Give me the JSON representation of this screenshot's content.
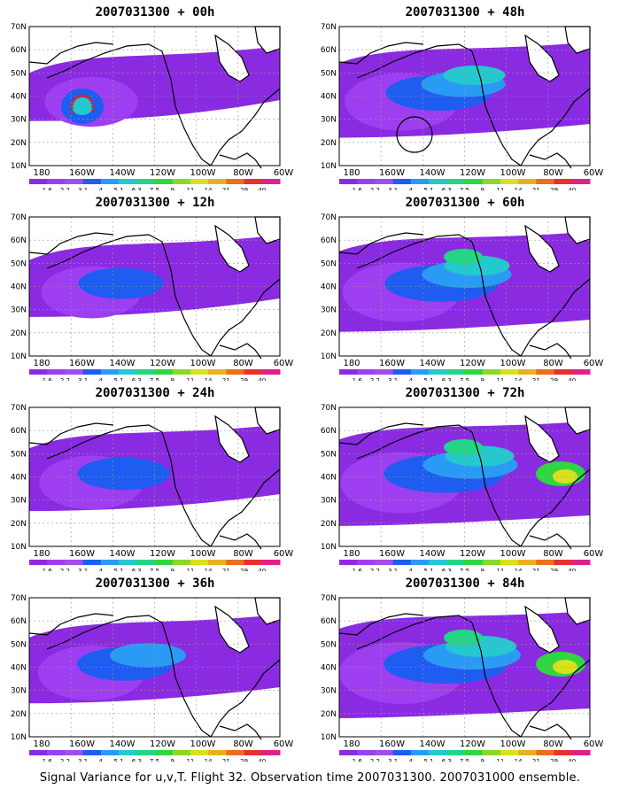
{
  "figure_caption": "Signal Variance for u,v,T. Flight 32. Observation time 2007031300. 2007031000 ensemble.",
  "lat_labels": [
    "70N",
    "60N",
    "50N",
    "40N",
    "30N",
    "20N",
    "10N"
  ],
  "lon_labels": [
    "180",
    "160W",
    "140W",
    "120W",
    "100W",
    "80W",
    "60W"
  ],
  "colorbar": {
    "labels": [
      "1.6",
      "2.2",
      "3.1",
      "4",
      "5.1",
      "6.3",
      "7.5",
      "9",
      "11",
      "14",
      "21",
      "29",
      "40"
    ],
    "colors": [
      "#8a2be2",
      "#9d3ff0",
      "#a050e8",
      "#1f5cf0",
      "#2a9bf5",
      "#24c8cf",
      "#23d686",
      "#30d640",
      "#8ad82a",
      "#d8e020",
      "#e8b020",
      "#e87020",
      "#e83030",
      "#e0208a"
    ]
  },
  "panels": [
    {
      "title": "2007031300 + 00h",
      "col": 0,
      "row": 0,
      "level": 0.3,
      "circle": false,
      "track": true
    },
    {
      "title": "2007031300 + 12h",
      "col": 0,
      "row": 1,
      "level": 0.45,
      "circle": false,
      "track": false
    },
    {
      "title": "2007031300 + 24h",
      "col": 0,
      "row": 2,
      "level": 0.55,
      "circle": false,
      "track": false
    },
    {
      "title": "2007031300 + 36h",
      "col": 0,
      "row": 3,
      "level": 0.6,
      "circle": false,
      "track": false
    },
    {
      "title": "2007031300 + 48h",
      "col": 1,
      "row": 0,
      "level": 0.75,
      "circle": true,
      "track": false
    },
    {
      "title": "2007031300 + 60h",
      "col": 1,
      "row": 1,
      "level": 0.85,
      "circle": false,
      "track": false
    },
    {
      "title": "2007031300 + 72h",
      "col": 1,
      "row": 2,
      "level": 0.95,
      "circle": false,
      "track": false
    },
    {
      "title": "2007031300 + 84h",
      "col": 1,
      "row": 3,
      "level": 1.0,
      "circle": false,
      "track": false
    }
  ]
}
